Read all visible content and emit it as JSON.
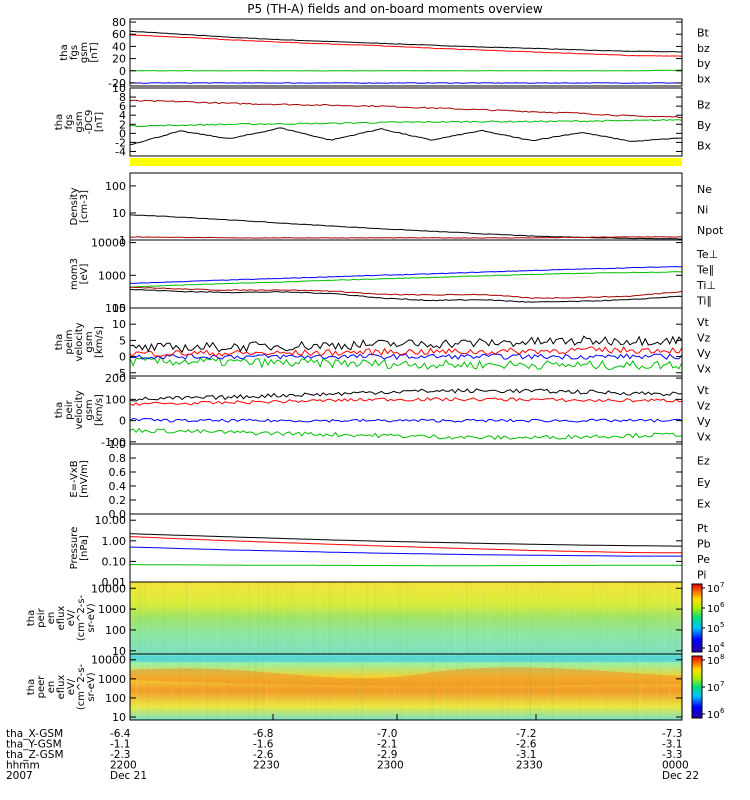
{
  "title": "P5 (TH-A) fields and on-board moments overview",
  "panels": [
    {
      "id": "fgs",
      "ylabel": [
        "tha",
        "fgs",
        "gsm",
        "[nT]"
      ],
      "ticks": [
        "-20",
        "0",
        "20",
        "40",
        "60",
        "80"
      ],
      "yrange": [
        -25,
        85
      ],
      "legend": [
        {
          "label": "Bt",
          "color": "#000000"
        },
        {
          "label": "bz",
          "color": "#ff0000"
        },
        {
          "label": "by",
          "color": "#00c000"
        },
        {
          "label": "bx",
          "color": "#0000ff"
        }
      ],
      "series": [
        {
          "name": "Bt",
          "color": "#000000",
          "values": [
            65,
            60,
            55,
            51,
            48,
            45,
            42,
            39,
            37,
            34,
            32,
            31
          ],
          "noise": 0.4
        },
        {
          "name": "bz",
          "color": "#ff0000",
          "values": [
            59,
            55,
            51,
            47,
            44,
            41,
            37,
            34,
            31,
            28,
            25,
            24
          ],
          "noise": 0.4
        },
        {
          "name": "by",
          "color": "#00c000",
          "values": [
            0,
            0,
            0,
            0,
            0,
            0,
            0,
            0,
            0,
            0,
            0,
            1
          ],
          "noise": 0.3
        },
        {
          "name": "bx",
          "color": "#0000ff",
          "values": [
            -20,
            -20,
            -20,
            -20,
            -20,
            -20,
            -20,
            -20,
            -20,
            -20,
            -20,
            -20
          ],
          "noise": 0.5
        }
      ]
    },
    {
      "id": "fgs-dc",
      "ylabel": [
        "tha",
        "fgs",
        "gsm",
        "-DC9",
        "[nT]"
      ],
      "ticks": [
        "-4",
        "-2",
        "0",
        "2",
        "4",
        "6",
        "8",
        "10"
      ],
      "yrange": [
        -5,
        10
      ],
      "legend": [
        {
          "label": "Bz",
          "color": "#aa0000"
        },
        {
          "label": "By",
          "color": "#00c000"
        },
        {
          "label": "Bx",
          "color": "#000000"
        }
      ],
      "series": [
        {
          "name": "Bz",
          "color": "#aa0000",
          "values": [
            7.2,
            7.0,
            6.6,
            6.4,
            6.2,
            6.0,
            5.6,
            5.2,
            4.8,
            4.4,
            3.8,
            3.6
          ],
          "noise": 0.15
        },
        {
          "name": "By",
          "color": "#00c000",
          "values": [
            1.6,
            1.8,
            2.0,
            2.1,
            2.2,
            2.4,
            2.5,
            2.6,
            2.6,
            2.7,
            2.8,
            3.0
          ],
          "noise": 0.15
        },
        {
          "name": "Bx",
          "color": "#000000",
          "values": [
            -2.5,
            0.5,
            -1.2,
            1.2,
            -1.5,
            1.0,
            -1.5,
            0.6,
            -1.6,
            0.2,
            -1.8,
            -1.0
          ],
          "noise": 0.1
        }
      ]
    },
    {
      "id": "density",
      "ylabel": [
        "Density",
        "[cm-3]"
      ],
      "ticks": [
        "1",
        "10",
        "100"
      ],
      "log": true,
      "yrange": [
        1,
        300
      ],
      "legend": [
        {
          "label": "Ne",
          "color": "#aa0000"
        },
        {
          "label": "Ni",
          "color": "#000000"
        },
        {
          "label": "Npot",
          "color": "#0000ff"
        }
      ],
      "series": [
        {
          "name": "Ni",
          "color": "#000000",
          "values": [
            8.5,
            7,
            5.5,
            4.2,
            3.3,
            2.6,
            2.1,
            1.7,
            1.4,
            1.25,
            1.15,
            1.1
          ],
          "noise": 0.02
        },
        {
          "name": "Ne",
          "color": "#aa0000",
          "values": [
            1.3,
            1.25,
            1.2,
            1.2,
            1.2,
            1.2,
            1.2,
            1.2,
            1.2,
            1.25,
            1.3,
            1.3
          ],
          "noise": 0.02
        }
      ]
    },
    {
      "id": "temperature",
      "ylabel": [
        "mom3",
        "[eV]"
      ],
      "ticks": [
        "100",
        "1000",
        "10000"
      ],
      "log": true,
      "yrange": [
        100,
        12000
      ],
      "legend": [
        {
          "label": "Te⊥",
          "color": "#aa0000"
        },
        {
          "label": "Te∥",
          "color": "#000000"
        },
        {
          "label": "Ti⊥",
          "color": "#0000ff"
        },
        {
          "label": "Ti∥",
          "color": "#00c000"
        }
      ],
      "series": [
        {
          "name": "Ti⊥",
          "color": "#0000ff",
          "values": [
            560,
            640,
            720,
            800,
            900,
            1000,
            1100,
            1250,
            1400,
            1550,
            1700,
            1850
          ],
          "noise": 0.02
        },
        {
          "name": "Ti∥",
          "color": "#00c000",
          "values": [
            440,
            500,
            560,
            620,
            700,
            780,
            860,
            960,
            1060,
            1150,
            1220,
            1280
          ],
          "noise": 0.02
        },
        {
          "name": "Te⊥",
          "color": "#aa0000",
          "values": [
            440,
            380,
            350,
            360,
            330,
            260,
            250,
            260,
            200,
            210,
            230,
            320
          ],
          "noise": 0.03
        },
        {
          "name": "Te∥",
          "color": "#000000",
          "values": [
            370,
            320,
            300,
            310,
            280,
            200,
            170,
            180,
            150,
            160,
            180,
            230
          ],
          "noise": 0.03
        }
      ]
    },
    {
      "id": "peim-velocity",
      "ylabel": [
        "tha",
        "peim",
        "velocity",
        "gsm",
        "[km/s]"
      ],
      "ticks": [
        "-5",
        "0",
        "5",
        "10",
        "15"
      ],
      "yrange": [
        -6,
        15
      ],
      "legend": [
        {
          "label": "Vt",
          "color": "#000000"
        },
        {
          "label": "Vz",
          "color": "#ff0000"
        },
        {
          "label": "Vy",
          "color": "#00c000"
        },
        {
          "label": "Vx",
          "color": "#0000ff"
        }
      ],
      "series": [
        {
          "name": "Vy",
          "color": "#00c000",
          "values": [
            -1.5,
            -1.5,
            -1.7,
            -2,
            -2,
            -2.2,
            -2.5,
            -2.5,
            -2.5,
            -2.7,
            -2.7,
            -2.5
          ],
          "noise": 1.4
        },
        {
          "name": "Vx",
          "color": "#0000ff",
          "values": [
            0,
            0,
            0,
            0,
            0,
            0,
            0,
            0,
            0,
            0,
            0,
            0
          ],
          "noise": 0.8
        },
        {
          "name": "Vz",
          "color": "#ff0000",
          "values": [
            1,
            1,
            1,
            1,
            1.2,
            1.5,
            1.5,
            1.5,
            1.7,
            2,
            2,
            2
          ],
          "noise": 1.0
        },
        {
          "name": "Vt",
          "color": "#000000",
          "values": [
            2.5,
            2.8,
            3,
            3.2,
            3.5,
            3.8,
            4,
            4.2,
            4.5,
            4.8,
            5,
            5
          ],
          "noise": 1.5
        }
      ]
    },
    {
      "id": "peir-velocity",
      "ylabel": [
        "tha",
        "peir",
        "velocity",
        "gsm",
        "[km/s]"
      ],
      "ticks": [
        "-100",
        "0",
        "100",
        "200"
      ],
      "yrange": [
        -110,
        210
      ],
      "legend": [
        {
          "label": "Vt",
          "color": "#000000"
        },
        {
          "label": "Vz",
          "color": "#ff0000"
        },
        {
          "label": "Vy",
          "color": "#00c000"
        },
        {
          "label": "Vx",
          "color": "#0000ff"
        }
      ],
      "series": [
        {
          "name": "Vy",
          "color": "#00c000",
          "values": [
            -45,
            -50,
            -55,
            -60,
            -65,
            -70,
            -75,
            -80,
            -80,
            -75,
            -70,
            -65
          ],
          "noise": 10
        },
        {
          "name": "Vx",
          "color": "#0000ff",
          "values": [
            5,
            0,
            0,
            0,
            0,
            0,
            0,
            0,
            0,
            0,
            0,
            0
          ],
          "noise": 7
        },
        {
          "name": "Vz",
          "color": "#ff0000",
          "values": [
            80,
            80,
            85,
            90,
            95,
            100,
            100,
            100,
            100,
            95,
            95,
            95
          ],
          "noise": 8
        },
        {
          "name": "Vt",
          "color": "#000000",
          "values": [
            100,
            105,
            110,
            120,
            125,
            135,
            140,
            140,
            140,
            135,
            130,
            125
          ],
          "noise": 10
        }
      ]
    },
    {
      "id": "efield",
      "ylabel": [
        "E=-VxB",
        "[mV/m]"
      ],
      "ticks": [
        "0.0",
        "0.2",
        "0.4",
        "0.6",
        "0.8",
        "1.0"
      ],
      "yrange": [
        0,
        1
      ],
      "legend": [
        {
          "label": "Ez",
          "color": "#ff0000"
        },
        {
          "label": "Ey",
          "color": "#00c000"
        },
        {
          "label": "Ex",
          "color": "#0000ff"
        }
      ],
      "series": []
    },
    {
      "id": "pressure",
      "ylabel": [
        "Pressure",
        "[nPa]"
      ],
      "ticks": [
        "0.01",
        "0.10",
        "1.00",
        "10.00"
      ],
      "log": true,
      "yrange": [
        0.01,
        20
      ],
      "legend": [
        {
          "label": "Pt",
          "color": "#000000"
        },
        {
          "label": "Pb",
          "color": "#ff0000"
        },
        {
          "label": "Pe",
          "color": "#00c000"
        },
        {
          "label": "Pi",
          "color": "#0000ff"
        }
      ],
      "series": [
        {
          "name": "Pt",
          "color": "#000000",
          "values": [
            2.2,
            1.85,
            1.55,
            1.3,
            1.1,
            0.95,
            0.85,
            0.75,
            0.68,
            0.62,
            0.58,
            0.55
          ],
          "noise": 0
        },
        {
          "name": "Pb",
          "color": "#ff0000",
          "values": [
            1.6,
            1.25,
            1.0,
            0.82,
            0.68,
            0.56,
            0.47,
            0.4,
            0.34,
            0.3,
            0.27,
            0.26
          ],
          "noise": 0
        },
        {
          "name": "Pi",
          "color": "#0000ff",
          "values": [
            0.5,
            0.42,
            0.36,
            0.32,
            0.28,
            0.25,
            0.23,
            0.21,
            0.2,
            0.19,
            0.18,
            0.18
          ],
          "noise": 0
        },
        {
          "name": "Pe",
          "color": "#00c000",
          "values": [
            0.07,
            0.068,
            0.066,
            0.065,
            0.064,
            0.063,
            0.062,
            0.062,
            0.063,
            0.064,
            0.065,
            0.065
          ],
          "noise": 0
        }
      ]
    }
  ],
  "spectrograms": [
    {
      "id": "peir-eflux",
      "ylabel": [
        "tha",
        "peir",
        "en",
        "eflux",
        "eV/",
        "(cm^2-s-",
        "sr-eV)"
      ],
      "ticks": [
        "10",
        "100",
        "1000",
        "10000"
      ],
      "cbar_ticks": [
        "10",
        "10",
        "10",
        "10"
      ],
      "cbar_exponents": [
        "4",
        "5",
        "6",
        "7"
      ]
    },
    {
      "id": "peer-eflux",
      "ylabel": [
        "tha",
        "peer",
        "en",
        "eflux",
        "eV/",
        "(cm^2-s-",
        "sr-eV)"
      ],
      "ticks": [
        "10",
        "100",
        "1000",
        "10000"
      ],
      "cbar_ticks": [
        "10",
        "10",
        "10"
      ],
      "cbar_exponents": [
        "6",
        "7",
        "8"
      ]
    }
  ],
  "chart_data": {
    "type": "line",
    "title": "P5 (TH-A) fields and on-board moments overview",
    "x": [
      "2200",
      "2230",
      "2300",
      "2330",
      "0000"
    ],
    "xlabels": {
      "tha_X-GSM": [
        "-6.4",
        "-6.8",
        "-7.0",
        "-7.2",
        "-7.3"
      ],
      "tha_Y-GSM": [
        "-1.1",
        "-1.6",
        "-2.1",
        "-2.6",
        "-3.1"
      ],
      "tha_Z-GSM": [
        "-2.3",
        "-2.6",
        "-2.9",
        "-3.1",
        "-3.3"
      ],
      "hhmm": [
        "2200",
        "2230",
        "2300",
        "2330",
        "0000"
      ],
      "2007": [
        "Dec 21",
        "",
        "",
        "",
        "Dec 22"
      ]
    },
    "ephemeris_labels": [
      "tha_X-GSM",
      "tha_Y-GSM",
      "tha_Z-GSM",
      "hhmm",
      "2007"
    ]
  }
}
